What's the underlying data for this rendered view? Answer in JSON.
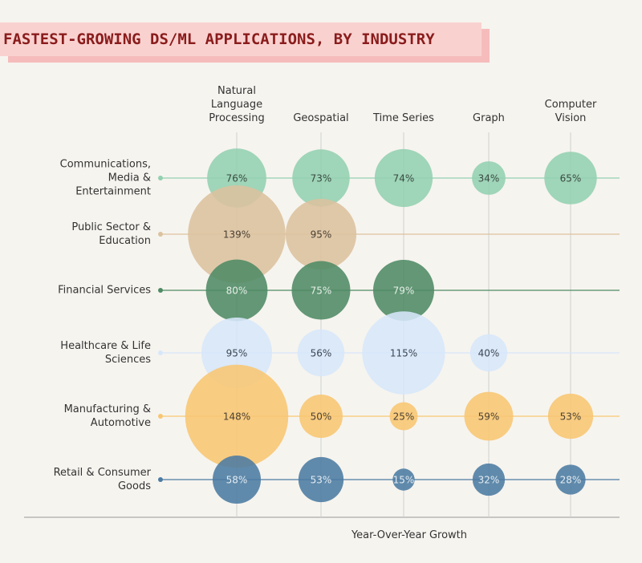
{
  "chart_data": {
    "type": "bubble",
    "title": "FASTEST-GROWING DS/ML APPLICATIONS, BY INDUSTRY",
    "x_label": "Year-Over-Year Growth",
    "categories": [
      "Natural Language Processing",
      "Geospatial",
      "Time Series",
      "Graph",
      "Computer Vision"
    ],
    "series": [
      {
        "name": "Communications, Media & Entertainment",
        "color": "#93d0b0",
        "label_color": "#3a4a42",
        "values": [
          76,
          73,
          74,
          34,
          65
        ],
        "value_labels": [
          "76%",
          "73%",
          "74%",
          "34%",
          "65%"
        ]
      },
      {
        "name": "Public Sector & Education",
        "color": "#dcc29e",
        "label_color": "#4a3f33",
        "values": [
          139,
          95,
          null,
          null,
          null
        ],
        "value_labels": [
          "139%",
          "95%",
          null,
          null,
          null
        ]
      },
      {
        "name": "Financial Services",
        "color": "#4e8a64",
        "label_color": "#e6efe9",
        "values": [
          80,
          75,
          79,
          null,
          null
        ],
        "value_labels": [
          "80%",
          "75%",
          "79%",
          null,
          null
        ]
      },
      {
        "name": "Healthcare & Life Sciences",
        "color": "#d7e7fb",
        "label_color": "#3d4652",
        "values": [
          95,
          56,
          115,
          40,
          null
        ],
        "value_labels": [
          "95%",
          "56%",
          "115%",
          "40%",
          null
        ]
      },
      {
        "name": "Manufacturing & Automotive",
        "color": "#f8c672",
        "label_color": "#4d4131",
        "values": [
          148,
          50,
          25,
          59,
          53
        ],
        "value_labels": [
          "148%",
          "50%",
          "25%",
          "59%",
          "53%"
        ]
      },
      {
        "name": "Retail & Consumer Goods",
        "color": "#4b7ba2",
        "label_color": "#e4ecf3",
        "values": [
          58,
          53,
          15,
          32,
          28
        ],
        "value_labels": [
          "58%",
          "53%",
          "15%",
          "32%",
          "28%"
        ]
      }
    ]
  }
}
